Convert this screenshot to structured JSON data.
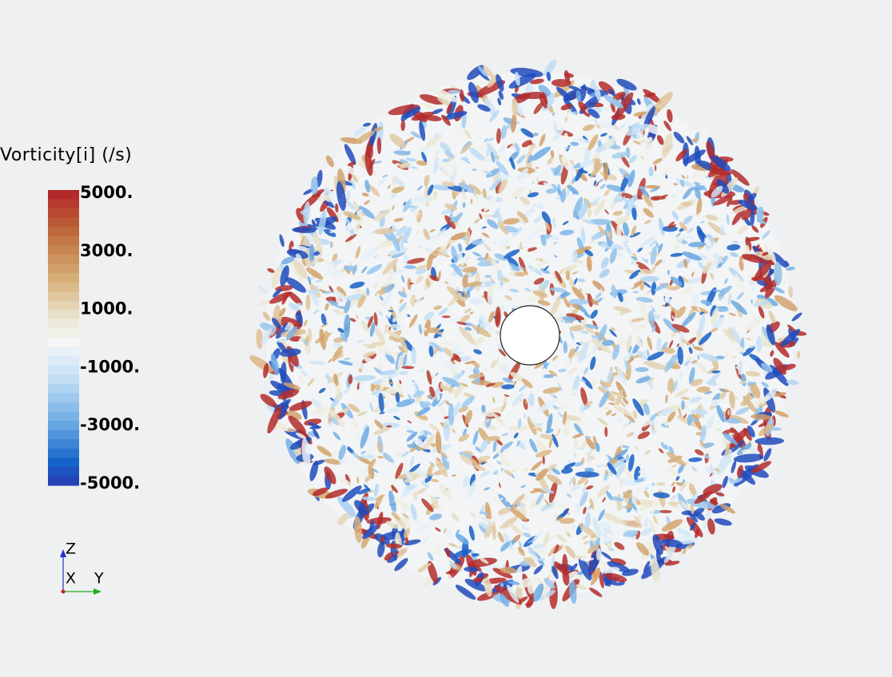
{
  "legend": {
    "title": "Vorticity[i] (/s)",
    "tick_labels": [
      "5000.",
      "3000.",
      "1000.",
      "-1000.",
      "-3000.",
      "-5000."
    ]
  },
  "axes_triad": {
    "z": "Z",
    "x": "X",
    "y": "Y"
  }
}
